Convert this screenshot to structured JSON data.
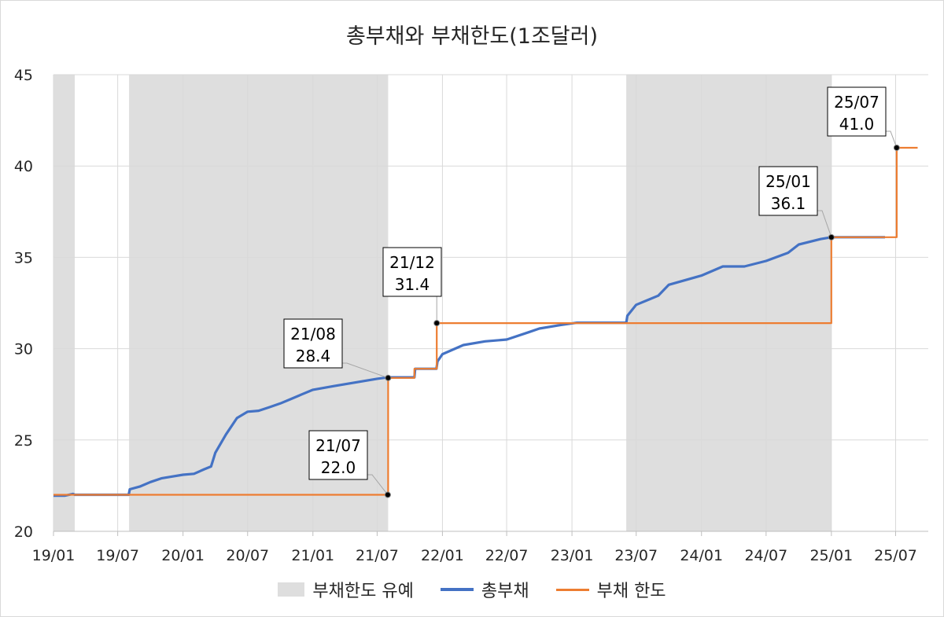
{
  "chart_data": {
    "type": "line",
    "title": "총부채와 부채한도(1조달러)",
    "xlabel": "",
    "ylabel": "",
    "ylim": [
      20,
      45
    ],
    "yticks": [
      20,
      25,
      30,
      35,
      40,
      45
    ],
    "xlim": [
      "2019-01-01",
      "2025-10-01"
    ],
    "xticks": [
      {
        "date": "2019-01-01",
        "label": "19/01"
      },
      {
        "date": "2019-07-01",
        "label": "19/07"
      },
      {
        "date": "2020-01-01",
        "label": "20/01"
      },
      {
        "date": "2020-07-01",
        "label": "20/07"
      },
      {
        "date": "2021-01-01",
        "label": "21/01"
      },
      {
        "date": "2021-07-01",
        "label": "21/07"
      },
      {
        "date": "2022-01-01",
        "label": "22/01"
      },
      {
        "date": "2022-07-01",
        "label": "22/07"
      },
      {
        "date": "2023-01-01",
        "label": "23/01"
      },
      {
        "date": "2023-07-01",
        "label": "23/07"
      },
      {
        "date": "2024-01-01",
        "label": "24/01"
      },
      {
        "date": "2024-07-01",
        "label": "24/07"
      },
      {
        "date": "2025-01-01",
        "label": "25/01"
      },
      {
        "date": "2025-07-01",
        "label": "25/07"
      }
    ],
    "grid": true,
    "legend_position": "bottom",
    "suspension_periods": {
      "name": "부채한도 유예",
      "color": "#dedede",
      "ranges": [
        [
          "2019-01-01",
          "2019-03-02"
        ],
        [
          "2019-08-02",
          "2021-08-01"
        ],
        [
          "2023-06-03",
          "2025-01-01"
        ]
      ]
    },
    "series": [
      {
        "name": "총부채",
        "color": "#4472c4",
        "points": [
          [
            "2019-01-01",
            21.95
          ],
          [
            "2019-02-01",
            21.95
          ],
          [
            "2019-02-25",
            22.05
          ],
          [
            "2019-03-02",
            22.0
          ],
          [
            "2019-05-01",
            22.0
          ],
          [
            "2019-08-01",
            22.0
          ],
          [
            "2019-08-04",
            22.3
          ],
          [
            "2019-09-01",
            22.45
          ],
          [
            "2019-10-01",
            22.7
          ],
          [
            "2019-11-01",
            22.9
          ],
          [
            "2019-12-01",
            23.0
          ],
          [
            "2020-01-01",
            23.1
          ],
          [
            "2020-02-01",
            23.15
          ],
          [
            "2020-03-01",
            23.4
          ],
          [
            "2020-03-20",
            23.55
          ],
          [
            "2020-04-01",
            24.3
          ],
          [
            "2020-05-01",
            25.3
          ],
          [
            "2020-06-01",
            26.2
          ],
          [
            "2020-07-01",
            26.55
          ],
          [
            "2020-08-01",
            26.6
          ],
          [
            "2020-09-01",
            26.8
          ],
          [
            "2020-10-01",
            27.0
          ],
          [
            "2020-11-01",
            27.25
          ],
          [
            "2020-12-01",
            27.5
          ],
          [
            "2021-01-01",
            27.75
          ],
          [
            "2021-03-01",
            27.95
          ],
          [
            "2021-05-01",
            28.15
          ],
          [
            "2021-07-01",
            28.35
          ],
          [
            "2021-08-01",
            28.43
          ],
          [
            "2021-10-14",
            28.43
          ],
          [
            "2021-10-16",
            28.9
          ],
          [
            "2021-12-15",
            28.9
          ],
          [
            "2021-12-18",
            29.3
          ],
          [
            "2022-01-01",
            29.7
          ],
          [
            "2022-03-01",
            30.2
          ],
          [
            "2022-05-01",
            30.4
          ],
          [
            "2022-07-01",
            30.5
          ],
          [
            "2022-09-01",
            30.9
          ],
          [
            "2022-10-01",
            31.1
          ],
          [
            "2022-12-01",
            31.3
          ],
          [
            "2023-01-15",
            31.42
          ],
          [
            "2023-06-03",
            31.42
          ],
          [
            "2023-06-06",
            31.8
          ],
          [
            "2023-07-01",
            32.4
          ],
          [
            "2023-09-01",
            32.9
          ],
          [
            "2023-10-01",
            33.5
          ],
          [
            "2024-01-01",
            34.0
          ],
          [
            "2024-03-01",
            34.5
          ],
          [
            "2024-05-01",
            34.5
          ],
          [
            "2024-07-01",
            34.8
          ],
          [
            "2024-09-01",
            35.25
          ],
          [
            "2024-10-01",
            35.7
          ],
          [
            "2024-12-01",
            36.0
          ],
          [
            "2025-01-01",
            36.1
          ],
          [
            "2025-06-01",
            36.1
          ]
        ]
      },
      {
        "name": "부채 한도",
        "color": "#ed7d31",
        "points": [
          [
            "2019-01-01",
            22.0
          ],
          [
            "2021-08-01",
            22.0
          ],
          [
            "2021-08-01",
            28.4
          ],
          [
            "2021-10-14",
            28.4
          ],
          [
            "2021-10-14",
            28.9
          ],
          [
            "2021-12-16",
            28.9
          ],
          [
            "2021-12-16",
            31.4
          ],
          [
            "2025-01-01",
            31.4
          ],
          [
            "2025-01-01",
            36.1
          ],
          [
            "2025-07-04",
            36.1
          ],
          [
            "2025-07-04",
            41.0
          ],
          [
            "2025-09-01",
            41.0
          ]
        ]
      }
    ],
    "annotations": [
      {
        "date": "2021-07-31",
        "value": 22.0,
        "line1": "21/07",
        "line2": "22.0"
      },
      {
        "date": "2021-08-01",
        "value": 28.4,
        "line1": "21/08",
        "line2": "28.4"
      },
      {
        "date": "2021-12-16",
        "value": 31.4,
        "line1": "21/12",
        "line2": "31.4"
      },
      {
        "date": "2025-01-01",
        "value": 36.1,
        "line1": "25/01",
        "line2": "36.1"
      },
      {
        "date": "2025-07-04",
        "value": 41.0,
        "line1": "25/07",
        "line2": "41.0"
      }
    ]
  }
}
